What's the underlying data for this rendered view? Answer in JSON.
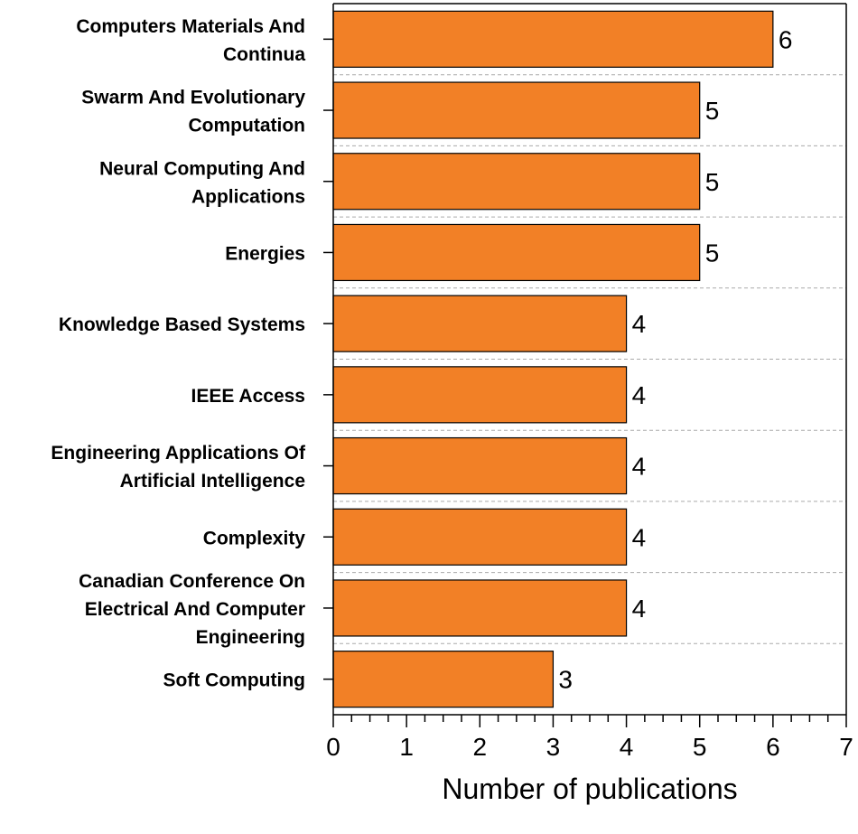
{
  "chart_data": {
    "type": "bar",
    "orientation": "horizontal",
    "categories": [
      [
        "Computers Materials And",
        "Continua"
      ],
      [
        "Swarm And Evolutionary",
        "Computation"
      ],
      [
        "Neural Computing And",
        "Applications"
      ],
      [
        "Energies"
      ],
      [
        "Knowledge Based Systems"
      ],
      [
        "IEEE Access"
      ],
      [
        "Engineering Applications Of",
        "Artificial Intelligence"
      ],
      [
        "Complexity"
      ],
      [
        "Canadian Conference On",
        "Electrical And Computer",
        "Engineering"
      ],
      [
        "Soft Computing"
      ]
    ],
    "values": [
      6,
      5,
      5,
      5,
      4,
      4,
      4,
      4,
      4,
      3
    ],
    "value_labels": [
      "6",
      "5",
      "5",
      "5",
      "4",
      "4",
      "4",
      "4",
      "4",
      "3"
    ],
    "xlabel": "Number of publications",
    "ylabel": "",
    "xlim": [
      0,
      7
    ],
    "x_ticks": [
      "0",
      "1",
      "2",
      "3",
      "4",
      "5",
      "6",
      "7"
    ],
    "grid": "horizontal dashed separators",
    "bar_color": "#F28026",
    "edge_color": "#000000",
    "grid_color": "#AAAAAA"
  }
}
